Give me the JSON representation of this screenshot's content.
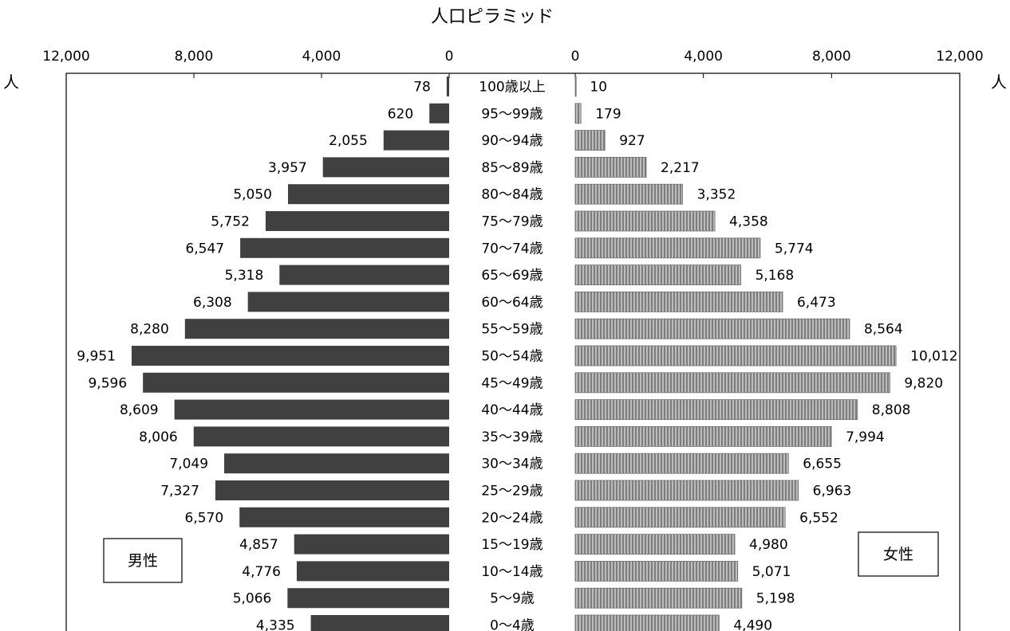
{
  "chart_data": {
    "type": "bar",
    "title": "人口ピラミッド",
    "unit_left": "人",
    "unit_right": "人",
    "male_axis": {
      "ticks": [
        12000,
        8000,
        4000,
        0
      ],
      "tick_labels": [
        "12,000",
        "8,000",
        "4,000",
        "0"
      ],
      "range": [
        0,
        12000
      ]
    },
    "female_axis": {
      "ticks": [
        0,
        4000,
        8000,
        12000
      ],
      "tick_labels": [
        "0",
        "4,000",
        "8,000",
        "12,000"
      ],
      "range": [
        0,
        12000
      ]
    },
    "categories": [
      "100歳以上",
      "95～99歳",
      "90～94歳",
      "85～89歳",
      "80～84歳",
      "75～79歳",
      "70～74歳",
      "65～69歳",
      "60～64歳",
      "55～59歳",
      "50～54歳",
      "45～49歳",
      "40～44歳",
      "35～39歳",
      "30～34歳",
      "25～29歳",
      "20～24歳",
      "15～19歳",
      "10～14歳",
      "5～9歳",
      "0～4歳"
    ],
    "series": [
      {
        "name": "男性",
        "color": "#404040",
        "values": [
          78,
          620,
          2055,
          3957,
          5050,
          5752,
          6547,
          5318,
          6308,
          8280,
          9951,
          9596,
          8609,
          8006,
          7049,
          7327,
          6570,
          4857,
          4776,
          5066,
          4335
        ],
        "labels": [
          "78",
          "620",
          "2,055",
          "3,957",
          "5,050",
          "5,752",
          "6,547",
          "5,318",
          "6,308",
          "8,280",
          "9,951",
          "9,596",
          "8,609",
          "8,006",
          "7,049",
          "7,327",
          "6,570",
          "4,857",
          "4,776",
          "5,066",
          "4,335"
        ]
      },
      {
        "name": "女性",
        "color": "#a0a0a0",
        "values": [
          10,
          179,
          927,
          2217,
          3352,
          4358,
          5774,
          5168,
          6473,
          8564,
          10012,
          9820,
          8808,
          7994,
          6655,
          6963,
          6552,
          4980,
          5071,
          5198,
          4490
        ],
        "labels": [
          "10",
          "179",
          "927",
          "2,217",
          "3,352",
          "4,358",
          "5,774",
          "5,168",
          "6,473",
          "8,564",
          "10,012",
          "9,820",
          "8,808",
          "7,994",
          "6,655",
          "6,963",
          "6,552",
          "4,980",
          "5,071",
          "5,198",
          "4,490"
        ]
      }
    ],
    "grid": false
  }
}
